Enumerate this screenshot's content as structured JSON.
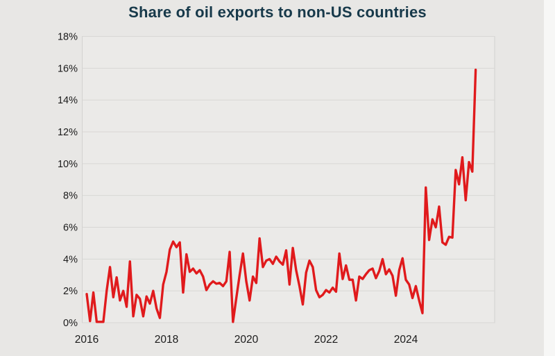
{
  "figure": {
    "title": "Share of oil exports to non-US countries",
    "background": "#e8e7e5",
    "plot_background": "#ebeae8",
    "plot_border_color": "#d2d1cf",
    "gridline_color": "#d8d7d5",
    "title_color": "#17394a",
    "axis_label_color": "#1a1a1a"
  },
  "chart_data": {
    "type": "line",
    "title": "Share of oil exports to non-US countries",
    "unit": "%",
    "frequency": "monthly",
    "start": "2016-01",
    "end": "2025-10",
    "line_color": "#e01a1c",
    "line_width": 3.4,
    "grid": "horizontal",
    "legend": "none",
    "ylim": [
      0,
      18
    ],
    "y_ticks": [
      0,
      2,
      4,
      6,
      8,
      10,
      12,
      14,
      16,
      18
    ],
    "y_tick_labels": [
      "0%",
      "2%",
      "4%",
      "6%",
      "8%",
      "10%",
      "12%",
      "14%",
      "16%",
      "18%"
    ],
    "x_tick_years": [
      2016,
      2018,
      2020,
      2022,
      2024
    ],
    "x_tick_labels": [
      "2016",
      "2018",
      "2020",
      "2022",
      "2024"
    ],
    "values": [
      1.8,
      0.1,
      1.9,
      0.05,
      0.05,
      0.05,
      2.0,
      3.5,
      1.6,
      2.85,
      1.4,
      2.0,
      1.0,
      3.85,
      0.4,
      1.75,
      1.5,
      0.4,
      1.65,
      1.2,
      2.0,
      0.9,
      0.3,
      2.4,
      3.2,
      4.6,
      5.1,
      4.75,
      5.05,
      1.9,
      4.3,
      3.2,
      3.4,
      3.1,
      3.3,
      2.9,
      2.05,
      2.4,
      2.6,
      2.45,
      2.5,
      2.3,
      2.6,
      4.45,
      0.05,
      1.55,
      3.0,
      4.35,
      2.6,
      1.4,
      2.9,
      2.5,
      5.3,
      3.5,
      3.9,
      4.0,
      3.7,
      4.15,
      3.85,
      3.65,
      4.55,
      2.4,
      4.7,
      3.3,
      2.3,
      1.15,
      3.15,
      3.9,
      3.5,
      2.05,
      1.6,
      1.75,
      2.05,
      1.9,
      2.2,
      1.95,
      4.35,
      2.75,
      3.6,
      2.7,
      2.7,
      1.4,
      2.9,
      2.75,
      3.05,
      3.3,
      3.4,
      2.8,
      3.25,
      4.0,
      3.05,
      3.35,
      2.95,
      1.7,
      3.3,
      4.05,
      2.7,
      2.4,
      1.55,
      2.3,
      1.4,
      0.6,
      8.5,
      5.2,
      6.5,
      6.0,
      7.3,
      5.05,
      4.9,
      5.4,
      5.35,
      9.6,
      8.7,
      10.4,
      7.7,
      10.1,
      9.5,
      15.9
    ]
  }
}
